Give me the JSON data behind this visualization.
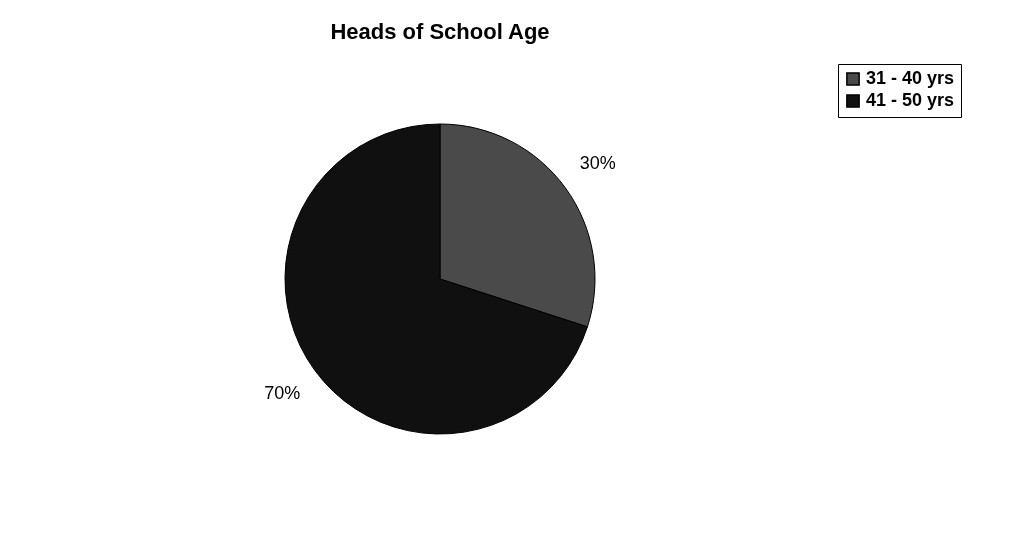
{
  "chart_data": {
    "type": "pie",
    "title": "Heads of School Age",
    "categories": [
      "31 - 40 yrs",
      "41 - 50 yrs"
    ],
    "values": [
      30,
      70
    ],
    "colors": [
      "#4a4a4a",
      "#101010"
    ],
    "value_labels": [
      "30%",
      "70%"
    ],
    "legend": "right"
  }
}
